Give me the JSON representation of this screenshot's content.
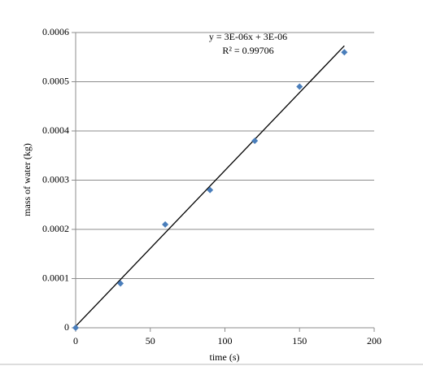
{
  "chart_data": {
    "type": "scatter",
    "x_label": "time (s)",
    "y_label": "mass of water (kg)",
    "series": [
      {
        "name": "mass of water",
        "color": "#4a7ebb",
        "x": [
          0,
          30,
          60,
          90,
          120,
          150,
          180
        ],
        "values": [
          0,
          9e-05,
          0.00021,
          0.00028,
          0.00038,
          0.00049,
          0.00056
        ]
      }
    ],
    "trendline": {
      "x": [
        0,
        180
      ],
      "values": [
        3e-06,
        0.000573
      ],
      "color": "#000000"
    },
    "annotations": [
      "y = 3E-06x + 3E-06",
      "R² = 0.99706"
    ],
    "xlim": [
      0,
      200
    ],
    "xticks": [
      0,
      50,
      100,
      150,
      200
    ],
    "ylim": [
      0,
      0.0006
    ],
    "yticks": [
      0,
      0.0001,
      0.0002,
      0.0003,
      0.0004,
      0.0005,
      0.0006
    ],
    "grid": true
  }
}
